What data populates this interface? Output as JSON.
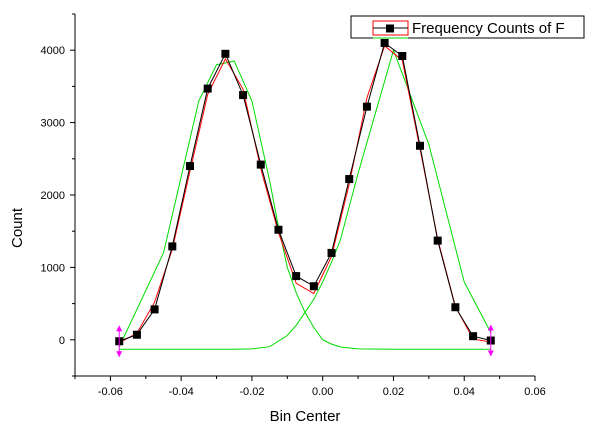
{
  "chart_data": {
    "type": "line",
    "title": "",
    "xlabel": "Bin Center",
    "ylabel": "Count",
    "xlim": [
      -0.07,
      0.06
    ],
    "ylim": [
      -500,
      4500
    ],
    "x_ticks": [
      -0.06,
      -0.04,
      -0.02,
      0.0,
      0.02,
      0.04,
      0.06
    ],
    "x_tick_labels": [
      "-0.06",
      "-0.04",
      "-0.02",
      "0.00",
      "0.02",
      "0.04",
      "0.06"
    ],
    "y_ticks": [
      0,
      1000,
      2000,
      3000,
      4000
    ],
    "y_tick_labels": [
      "0",
      "1000",
      "2000",
      "3000",
      "4000"
    ],
    "grid": false,
    "legend_position": "top-right",
    "legend_entries": [
      "Frequency Counts of F"
    ],
    "series": [
      {
        "name": "Frequency Counts of F",
        "kind": "line+square-markers",
        "color": "#000000",
        "x": [
          -0.0575,
          -0.0525,
          -0.0475,
          -0.0425,
          -0.0375,
          -0.0325,
          -0.0275,
          -0.0225,
          -0.0175,
          -0.0125,
          -0.0075,
          -0.0025,
          0.0025,
          0.0075,
          0.0125,
          0.0175,
          0.0225,
          0.0275,
          0.0325,
          0.0375,
          0.0425,
          0.0475
        ],
        "y": [
          -20,
          70,
          420,
          1290,
          2400,
          3470,
          3950,
          3380,
          2420,
          1520,
          880,
          740,
          1200,
          2220,
          3220,
          4100,
          3920,
          2680,
          1370,
          450,
          50,
          -10
        ]
      },
      {
        "kind": "fit-sum",
        "color": "#ff0000",
        "x": [
          -0.0575,
          -0.0525,
          -0.0475,
          -0.0425,
          -0.0375,
          -0.0325,
          -0.0275,
          -0.0225,
          -0.0175,
          -0.0125,
          -0.0075,
          -0.0025,
          0.0025,
          0.0075,
          0.0125,
          0.0175,
          0.0225,
          0.0275,
          0.0325,
          0.0375,
          0.0425,
          0.0475
        ],
        "y": [
          -40,
          90,
          520,
          1250,
          2330,
          3390,
          3880,
          3460,
          2360,
          1480,
          780,
          640,
          1150,
          2150,
          3340,
          4060,
          3860,
          2640,
          1390,
          460,
          10,
          -30
        ]
      },
      {
        "kind": "fit-peak",
        "color": "#00dd00",
        "x": [
          -0.0575,
          -0.045,
          -0.035,
          -0.025,
          -0.02,
          -0.015,
          -0.01,
          -0.0075,
          -0.005,
          -0.0025,
          0.0,
          0.0025,
          0.005,
          0.01,
          0.02,
          0.03,
          0.04,
          0.0475
        ],
        "y": [
          -130,
          -130,
          -130,
          -130,
          -125,
          -95,
          60,
          200,
          380,
          560,
          800,
          1070,
          1380,
          2300,
          4000,
          2700,
          800,
          100
        ]
      },
      {
        "kind": "fit-peak",
        "color": "#00dd00",
        "x": [
          -0.0575,
          -0.045,
          -0.035,
          -0.03,
          -0.025,
          -0.02,
          -0.015,
          -0.0125,
          -0.01,
          -0.0075,
          -0.005,
          -0.0025,
          0.0,
          0.0025,
          0.005,
          0.01,
          0.02,
          0.03,
          0.04,
          0.0475
        ],
        "y": [
          -100,
          1200,
          3300,
          3800,
          3850,
          3300,
          2200,
          1560,
          1000,
          650,
          380,
          170,
          0,
          -60,
          -100,
          -125,
          -130,
          -130,
          -130,
          -130
        ]
      }
    ],
    "range_markers": [
      {
        "x": -0.0575,
        "y": -20,
        "color": "#ff00ff"
      },
      {
        "x": 0.0475,
        "y": -10,
        "color": "#ff00ff"
      }
    ]
  }
}
